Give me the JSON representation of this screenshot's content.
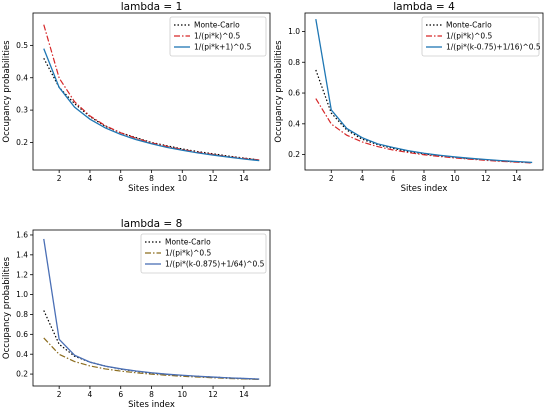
{
  "chart_data": [
    {
      "type": "line",
      "title": "lambda = 1",
      "xlabel": "Sites index",
      "ylabel": "Occupancy probabilities",
      "xlim": [
        0.3,
        15.7
      ],
      "ylim": [
        0.115,
        0.6
      ],
      "xticks": [
        2,
        4,
        6,
        8,
        10,
        12,
        14
      ],
      "yticks": [
        0.2,
        0.3,
        0.4,
        0.5
      ],
      "legend_position": "top-right",
      "x": [
        1,
        2,
        3,
        4,
        5,
        6,
        7,
        8,
        9,
        10,
        11,
        12,
        13,
        14,
        15
      ],
      "series": [
        {
          "name": "Monte-Carlo",
          "style": "dotted",
          "color": "#000000",
          "values": [
            0.46,
            0.37,
            0.32,
            0.28,
            0.25,
            0.23,
            0.215,
            0.2,
            0.19,
            0.18,
            0.172,
            0.165,
            0.158,
            0.152,
            0.146
          ]
        },
        {
          "name": "1/(pi*k)^0.5",
          "style": "dashdot",
          "color": "#d62728",
          "values": [
            0.564,
            0.399,
            0.326,
            0.282,
            0.252,
            0.23,
            0.213,
            0.199,
            0.188,
            0.178,
            0.17,
            0.163,
            0.156,
            0.151,
            0.146
          ]
        },
        {
          "name": "1/(pi*k+1)^0.5",
          "style": "solid",
          "color": "#1f77b4",
          "values": [
            0.49,
            0.37,
            0.309,
            0.272,
            0.245,
            0.225,
            0.209,
            0.196,
            0.185,
            0.176,
            0.168,
            0.161,
            0.155,
            0.149,
            0.144
          ]
        }
      ]
    },
    {
      "type": "line",
      "title": "lambda = 4",
      "xlabel": "Sites index",
      "ylabel": "Occupancy probabilities",
      "xlim": [
        0.3,
        15.7
      ],
      "ylim": [
        0.1,
        1.12
      ],
      "xticks": [
        2,
        4,
        6,
        8,
        10,
        12,
        14
      ],
      "yticks": [
        0.2,
        0.4,
        0.6,
        0.8,
        1.0
      ],
      "legend_position": "top-right",
      "x": [
        1,
        2,
        3,
        4,
        5,
        6,
        7,
        8,
        9,
        10,
        11,
        12,
        13,
        14,
        15
      ],
      "series": [
        {
          "name": "Monte-Carlo",
          "style": "dotted",
          "color": "#000000",
          "values": [
            0.75,
            0.47,
            0.36,
            0.3,
            0.265,
            0.24,
            0.22,
            0.205,
            0.192,
            0.182,
            0.173,
            0.166,
            0.159,
            0.153,
            0.147
          ]
        },
        {
          "name": "1/(pi*k)^0.5",
          "style": "dashdot",
          "color": "#d62728",
          "values": [
            0.564,
            0.399,
            0.326,
            0.282,
            0.252,
            0.23,
            0.213,
            0.199,
            0.188,
            0.178,
            0.17,
            0.163,
            0.156,
            0.151,
            0.146
          ]
        },
        {
          "name": "1/(pi*(k-0.75)+1/16)^0.5",
          "style": "solid",
          "color": "#1f77b4",
          "values": [
            1.08,
            0.49,
            0.37,
            0.31,
            0.27,
            0.246,
            0.225,
            0.209,
            0.196,
            0.185,
            0.176,
            0.168,
            0.161,
            0.155,
            0.149
          ]
        }
      ]
    },
    {
      "type": "line",
      "title": "lambda = 8",
      "xlabel": "Sites index",
      "ylabel": "Occupancy probabilities",
      "xlim": [
        0.3,
        15.7
      ],
      "ylim": [
        0.08,
        1.65
      ],
      "xticks": [
        2,
        4,
        6,
        8,
        10,
        12,
        14
      ],
      "yticks": [
        0.2,
        0.4,
        0.6,
        0.8,
        1.0,
        1.2,
        1.4,
        1.6
      ],
      "legend_position": "top-right",
      "x": [
        1,
        2,
        3,
        4,
        5,
        6,
        7,
        8,
        9,
        10,
        11,
        12,
        13,
        14,
        15
      ],
      "series": [
        {
          "name": "Monte-Carlo",
          "style": "dotted",
          "color": "#000000",
          "values": [
            0.84,
            0.5,
            0.38,
            0.32,
            0.28,
            0.25,
            0.228,
            0.21,
            0.197,
            0.186,
            0.177,
            0.169,
            0.162,
            0.155,
            0.149
          ]
        },
        {
          "name": "1/(pi*k)^0.5",
          "style": "dashdot",
          "color": "#8c6d1f",
          "values": [
            0.564,
            0.399,
            0.326,
            0.282,
            0.252,
            0.23,
            0.213,
            0.199,
            0.188,
            0.178,
            0.17,
            0.163,
            0.156,
            0.151,
            0.146
          ]
        },
        {
          "name": "1/(pi*(k-0.875)+1/64)^0.5",
          "style": "solid",
          "color": "#4a6fb5",
          "values": [
            1.56,
            0.55,
            0.39,
            0.32,
            0.28,
            0.253,
            0.231,
            0.213,
            0.199,
            0.188,
            0.178,
            0.17,
            0.162,
            0.156,
            0.15
          ]
        }
      ]
    }
  ]
}
